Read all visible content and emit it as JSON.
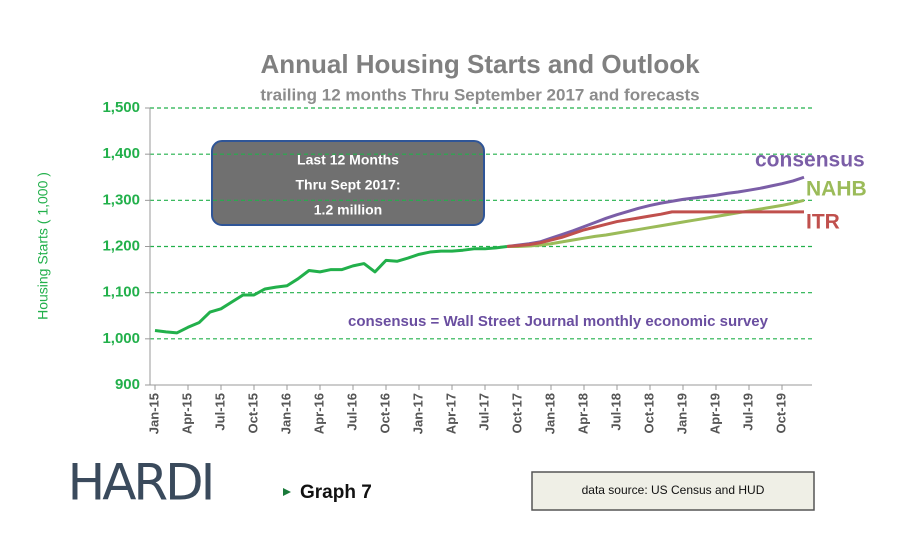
{
  "chart_data": {
    "type": "line",
    "title": "Annual Housing Starts and Outlook",
    "subtitle": "trailing 12 months Thru September 2017 and forecasts",
    "y_label": "Housing Starts ( 1,000 )",
    "callout": [
      "Last 12 Months",
      "Thru Sept 2017:",
      "1.2 million"
    ],
    "annotation": "consensus = Wall Street Journal monthly economic survey",
    "logo": "HARDI",
    "graph_label": "Graph 7",
    "source": "data source: US Census and HUD",
    "ylim": [
      900,
      1500
    ],
    "yticks": [
      {
        "value": 900,
        "label": "900"
      },
      {
        "value": 1000,
        "label": "1,000"
      },
      {
        "value": 1100,
        "label": "1,100"
      },
      {
        "value": 1200,
        "label": "1,200"
      },
      {
        "value": 1300,
        "label": "1,300"
      },
      {
        "value": 1400,
        "label": "1,400"
      },
      {
        "value": 1500,
        "label": "1,500"
      }
    ],
    "grid": true,
    "categories": [
      "Jan-15",
      null,
      null,
      "Apr-15",
      null,
      null,
      "Jul-15",
      null,
      null,
      "Oct-15",
      null,
      null,
      "Jan-16",
      null,
      null,
      "Apr-16",
      null,
      null,
      "Jul-16",
      null,
      null,
      "Oct-16",
      null,
      null,
      "Jan-17",
      null,
      null,
      "Apr-17",
      null,
      null,
      "Jul-17",
      null,
      null,
      "Oct-17",
      null,
      null,
      "Jan-18",
      null,
      null,
      "Apr-18",
      null,
      null,
      "Jul-18",
      null,
      null,
      "Oct-18",
      null,
      null,
      "Jan-19",
      null,
      null,
      "Apr-19",
      null,
      null,
      "Jul-19",
      null,
      null,
      "Oct-19",
      null,
      null
    ],
    "series": [
      {
        "color": "#22b04b",
        "values": [
          1018,
          1015,
          1013,
          1025,
          1035,
          1058,
          1065,
          1080,
          1095,
          1095,
          1108,
          1112,
          1115,
          1130,
          1148,
          1145,
          1150,
          1150,
          1158,
          1163,
          1145,
          1170,
          1168,
          1175,
          1183,
          1188,
          1190,
          1190,
          1192,
          1195,
          1195,
          1197,
          1200,
          null,
          null,
          null,
          null,
          null,
          null,
          null,
          null,
          null,
          null,
          null,
          null,
          null,
          null,
          null,
          null,
          null,
          null,
          null,
          null,
          null,
          null,
          null,
          null,
          null,
          null,
          null
        ]
      },
      {
        "name": "consensus",
        "color": "#7b5ea7",
        "values": [
          null,
          null,
          null,
          null,
          null,
          null,
          null,
          null,
          null,
          null,
          null,
          null,
          null,
          null,
          null,
          null,
          null,
          null,
          null,
          null,
          null,
          null,
          null,
          null,
          null,
          null,
          null,
          null,
          null,
          null,
          null,
          null,
          1200,
          1203,
          1206,
          1210,
          1218,
          1226,
          1234,
          1243,
          1252,
          1261,
          1269,
          1276,
          1283,
          1289,
          1294,
          1298,
          1302,
          1305,
          1308,
          1311,
          1315,
          1318,
          1322,
          1326,
          1331,
          1336,
          1342,
          1350
        ]
      },
      {
        "name": "NAHB",
        "color": "#9bbb59",
        "values": [
          null,
          null,
          null,
          null,
          null,
          null,
          null,
          null,
          null,
          null,
          null,
          null,
          null,
          null,
          null,
          null,
          null,
          null,
          null,
          null,
          null,
          null,
          null,
          null,
          null,
          null,
          null,
          null,
          null,
          null,
          null,
          null,
          1200,
          1200,
          1201,
          1203,
          1206,
          1210,
          1214,
          1218,
          1222,
          1225,
          1229,
          1233,
          1237,
          1241,
          1245,
          1249,
          1253,
          1257,
          1261,
          1265,
          1269,
          1273,
          1277,
          1281,
          1285,
          1289,
          1294,
          1300
        ]
      },
      {
        "name": "ITR",
        "color": "#c0504d",
        "values": [
          null,
          null,
          null,
          null,
          null,
          null,
          null,
          null,
          null,
          null,
          null,
          null,
          null,
          null,
          null,
          null,
          null,
          null,
          null,
          null,
          null,
          null,
          null,
          null,
          null,
          null,
          null,
          null,
          null,
          null,
          null,
          null,
          1200,
          1202,
          1204,
          1208,
          1214,
          1220,
          1228,
          1236,
          1242,
          1248,
          1254,
          1258,
          1262,
          1266,
          1270,
          1275,
          1275,
          1275,
          1275,
          1275,
          1275,
          1275,
          1275,
          1275,
          1275,
          1275,
          1275,
          1275
        ]
      }
    ]
  }
}
